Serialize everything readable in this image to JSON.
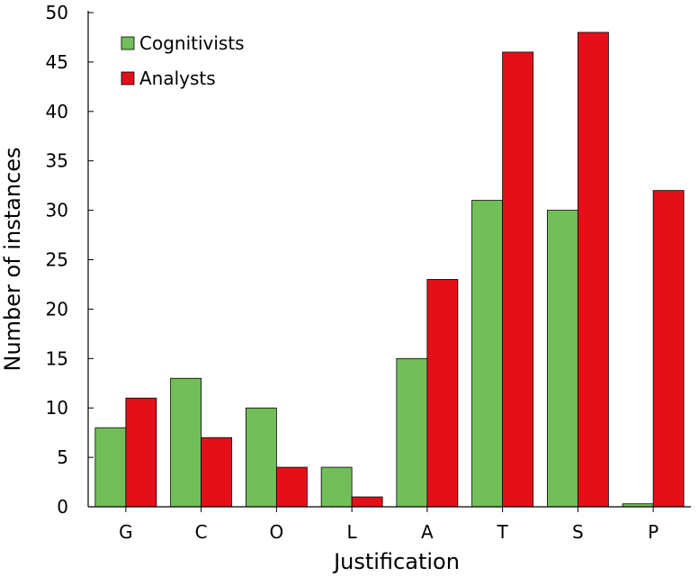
{
  "chart_data": {
    "type": "bar",
    "title": "",
    "xlabel": "Justification",
    "ylabel": "Number of instances",
    "categories": [
      "G",
      "C",
      "O",
      "L",
      "A",
      "T",
      "S",
      "P"
    ],
    "ylim": [
      0,
      50
    ],
    "yticks": [
      0,
      5,
      10,
      15,
      20,
      25,
      30,
      35,
      40,
      45,
      50
    ],
    "grid": false,
    "legend_position": "top-left",
    "series": [
      {
        "name": "Cognitivists",
        "color": "#72bf5a",
        "values": [
          8,
          13,
          10,
          4,
          15,
          31,
          30,
          0.3
        ]
      },
      {
        "name": "Analysts",
        "color": "#e3101a",
        "values": [
          11,
          7,
          4,
          1,
          23,
          46,
          48,
          32
        ]
      }
    ]
  }
}
